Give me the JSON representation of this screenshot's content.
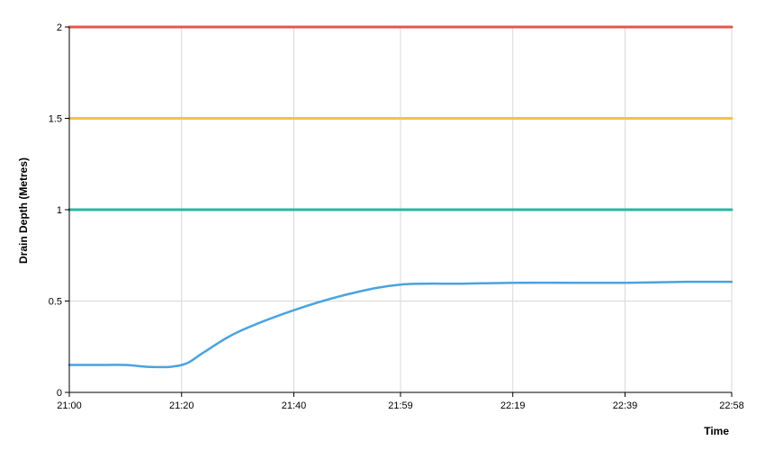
{
  "chart_data": {
    "type": "line",
    "xlabel": "Time",
    "ylabel": "Drain Depth (Metres)",
    "x_tick_labels": [
      "21:00",
      "21:20",
      "21:40",
      "21:59",
      "22:19",
      "22:39",
      "22:58"
    ],
    "y_tick_labels": [
      "0",
      "0.5",
      "1",
      "1.5",
      "2"
    ],
    "ylim": [
      0,
      2
    ],
    "grid": true,
    "series": [
      {
        "color": "#e2574c",
        "x": [
          "21:00",
          "22:58"
        ],
        "y": [
          2.0,
          2.0
        ]
      },
      {
        "color": "#f5c242",
        "x": [
          "21:00",
          "22:58"
        ],
        "y": [
          1.5,
          1.5
        ]
      },
      {
        "color": "#2ab7a0",
        "x": [
          "21:00",
          "22:58"
        ],
        "y": [
          1.0,
          1.0
        ]
      },
      {
        "color": "#4aa3df",
        "x": [
          "21:00",
          "21:05",
          "21:10",
          "21:14",
          "21:18",
          "21:21",
          "21:24",
          "21:30",
          "21:40",
          "21:50",
          "21:59",
          "22:10",
          "22:19",
          "22:30",
          "22:39",
          "22:50",
          "22:58"
        ],
        "y": [
          0.15,
          0.15,
          0.15,
          0.14,
          0.14,
          0.16,
          0.22,
          0.33,
          0.45,
          0.54,
          0.59,
          0.595,
          0.6,
          0.6,
          0.6,
          0.605,
          0.605
        ]
      }
    ]
  }
}
